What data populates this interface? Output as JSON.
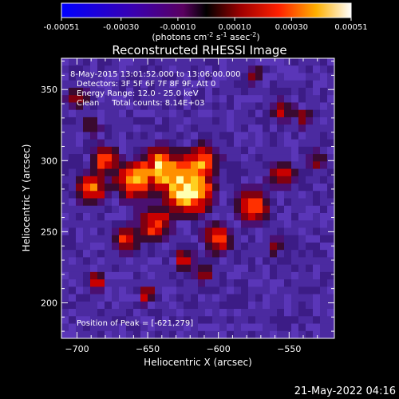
{
  "chart_data": {
    "type": "heatmap",
    "title": "Reconstructed RHESSI Image",
    "xlabel": "Heliocentric X (arcsec)",
    "ylabel": "Heliocentric Y (arcsec)",
    "xlim": [
      -711,
      -518
    ],
    "ylim": [
      175,
      372
    ],
    "xticks": [
      -700,
      -650,
      -600,
      -550
    ],
    "yticks": [
      200,
      250,
      300,
      350
    ],
    "colorbar": {
      "min": -0.00051,
      "max": 0.00051,
      "ticks": [
        "-0.00051",
        "-0.00030",
        "-0.00010",
        "0.00010",
        "0.00030",
        "0.00051"
      ],
      "label": "(photons cm",
      "label_exp1": "-2",
      "label_mid": " s",
      "label_exp2": "-1",
      "label_mid2": " asec",
      "label_exp3": "-2",
      "label_end": ")"
    },
    "peak": [
      -621,
      279
    ],
    "annotations": [
      "8-May-2015 13:01:52.000 to 13:06:00.000",
      "Detectors: 3F 5F 6F 7F 8F 9F, Att 0",
      "Energy Range: 12.0 - 25.0 keV",
      "Clean     Total counts: 8.14E+03"
    ],
    "peak_label": "Position of Peak = [-621,279]",
    "timestamp": "21-May-2022 04:16"
  }
}
